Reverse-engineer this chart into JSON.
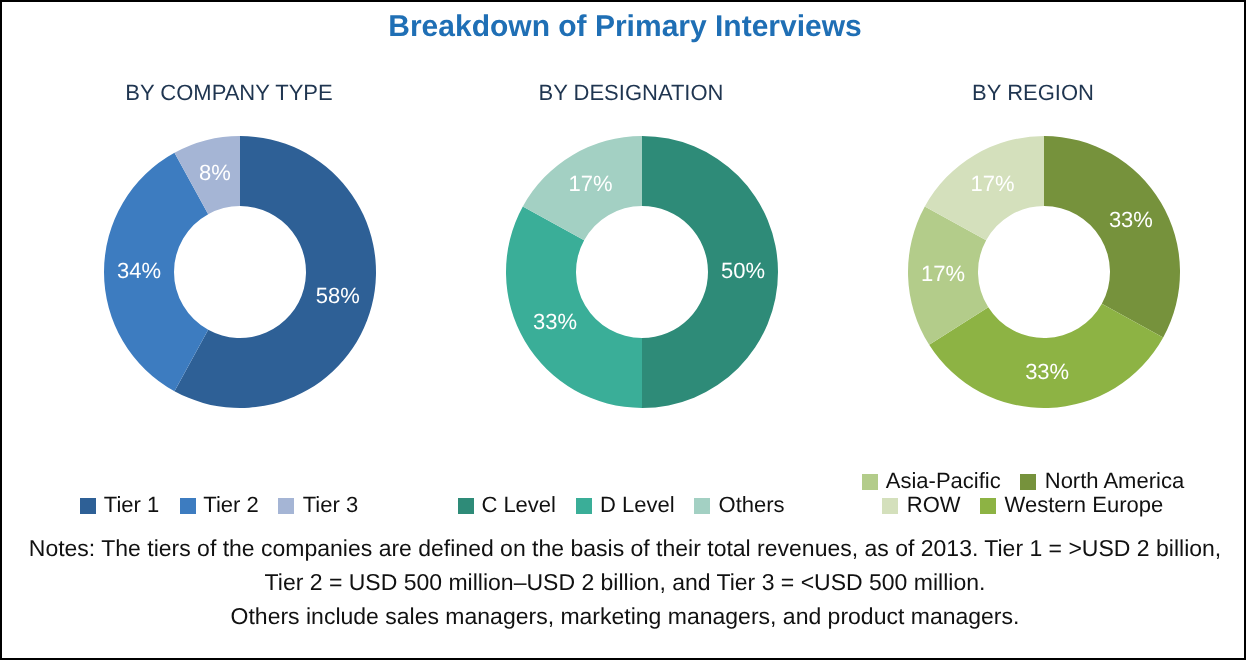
{
  "chart_data": [
    {
      "type": "other",
      "title": "Breakdown of Primary Interviews",
      "annotations": [
        "Notes: The tiers of the companies are defined on the basis of their total revenues, as of 2013. Tier 1 = >USD 2 billion, Tier 2 = USD 500 million–USD 2 billion, and Tier 3 = <USD 500 million.",
        "Others include sales managers, marketing managers, and product managers."
      ]
    },
    {
      "type": "donut",
      "title": "BY COMPANY TYPE",
      "categories": [
        "Tier 1",
        "Tier 2",
        "Tier 3"
      ],
      "values": [
        58,
        34,
        8
      ],
      "colors": [
        "#2e6096",
        "#3d7cc0",
        "#a5b5d5"
      ],
      "value_labels": [
        "58%",
        "34%",
        "8%"
      ],
      "legend": "bottom"
    },
    {
      "type": "donut",
      "title": "BY DESIGNATION",
      "categories": [
        "C Level",
        "D Level",
        "Others"
      ],
      "values": [
        50,
        33,
        17
      ],
      "colors": [
        "#2e8b78",
        "#3aae98",
        "#a3d0c3"
      ],
      "value_labels": [
        "50%",
        "33%",
        "17%"
      ],
      "legend": "bottom"
    },
    {
      "type": "donut",
      "title": "BY REGION",
      "categories": [
        "North America",
        "Western Europe",
        "Asia-Pacific",
        "ROW"
      ],
      "values": [
        33,
        33,
        17,
        17
      ],
      "colors": [
        "#76923c",
        "#8db344",
        "#b3cc8a",
        "#d4e0bc"
      ],
      "value_labels": [
        "33%",
        "33%",
        "17%",
        "17%"
      ],
      "legend": "bottom"
    }
  ]
}
